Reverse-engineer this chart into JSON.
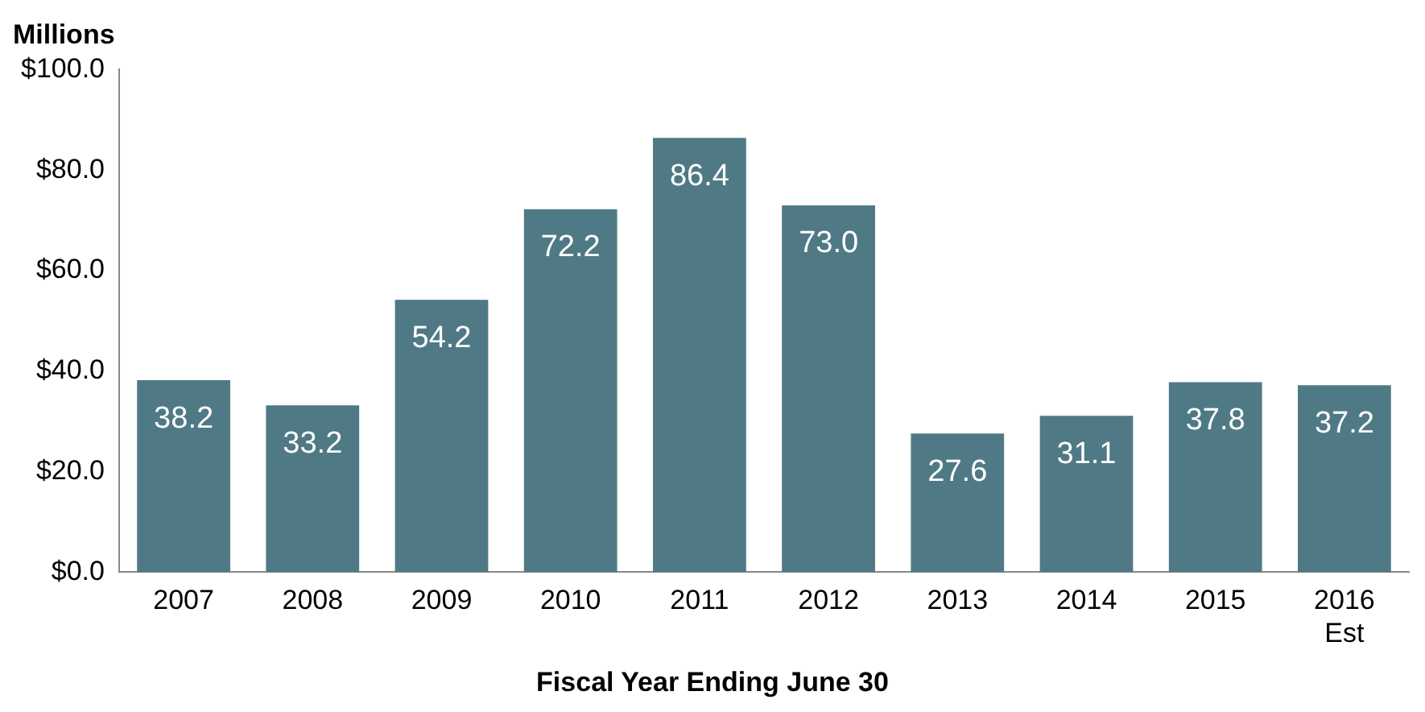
{
  "chart_data": {
    "type": "bar",
    "ylabel": "Millions",
    "xlabel": "Fiscal Year Ending June 30",
    "categories": [
      "2007",
      "2008",
      "2009",
      "2010",
      "2011",
      "2012",
      "2013",
      "2014",
      "2015",
      "2016\nEst"
    ],
    "values": [
      38.2,
      33.2,
      54.2,
      72.2,
      86.4,
      73.0,
      27.6,
      31.1,
      37.8,
      37.2
    ],
    "color": "#4f7a85",
    "ylim": [
      0,
      100
    ],
    "yticks": [
      {
        "value": 0,
        "label": "$0.0"
      },
      {
        "value": 20,
        "label": "$20.0"
      },
      {
        "value": 40,
        "label": "$40.0"
      },
      {
        "value": 60,
        "label": "$60.0"
      },
      {
        "value": 80,
        "label": "$80.0"
      },
      {
        "value": 100,
        "label": "$100.0"
      }
    ],
    "value_labels": [
      "38.2",
      "33.2",
      "54.2",
      "72.2",
      "86.4",
      "73.0",
      "27.6",
      "31.1",
      "37.8",
      "37.2"
    ],
    "grid": false,
    "legend": false
  }
}
